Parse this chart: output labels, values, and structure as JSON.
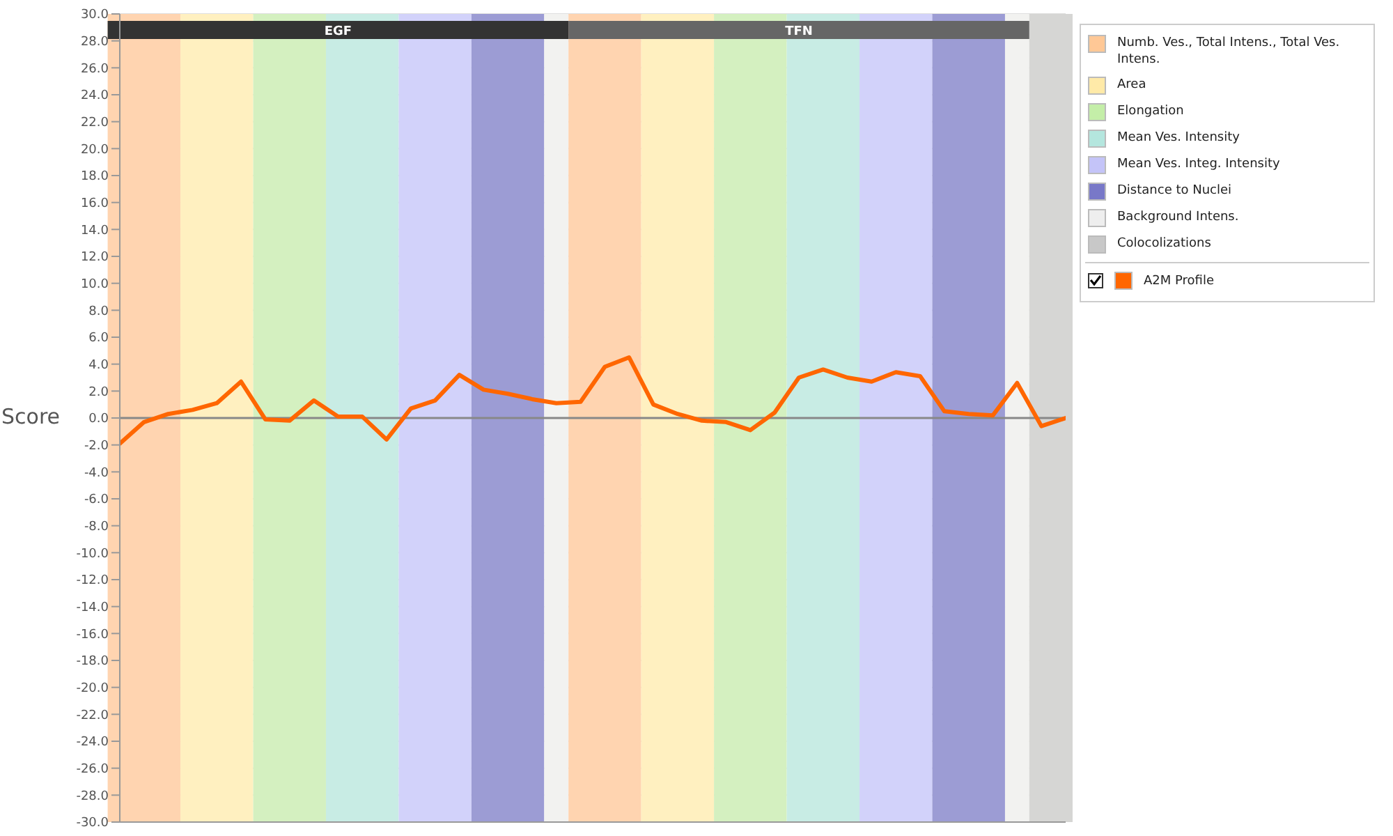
{
  "chart_data": {
    "type": "line",
    "ylabel": "Score",
    "categories": [
      null,
      null,
      null,
      null,
      null,
      null,
      null,
      null,
      null,
      null,
      null,
      null,
      null,
      null,
      null,
      null,
      null,
      null,
      null,
      null,
      null,
      null,
      null,
      null,
      null,
      null,
      null,
      null,
      null,
      null,
      null,
      null,
      null,
      null,
      null,
      null,
      null,
      null,
      null,
      null
    ],
    "series": [
      {
        "name": "A2M Profile",
        "color": "#ff6600",
        "values": [
          -1.9,
          -0.3,
          0.3,
          0.6,
          1.1,
          2.7,
          -0.1,
          -0.2,
          1.3,
          0.1,
          0.1,
          -1.6,
          0.7,
          1.3,
          3.2,
          2.1,
          1.8,
          1.4,
          1.1,
          1.2,
          3.8,
          4.5,
          1.0,
          0.3,
          -0.2,
          -0.3,
          -0.9,
          0.4,
          3.0,
          3.6,
          3.0,
          2.7,
          3.4,
          3.1,
          0.5,
          0.3,
          0.2,
          2.6,
          -0.6,
          0.0
        ]
      }
    ],
    "ylim": [
      -30,
      30
    ],
    "yticks": [
      {
        "value": -30,
        "label": "-30.0"
      },
      {
        "value": -28,
        "label": "-28.0"
      },
      {
        "value": -26,
        "label": "-26.0"
      },
      {
        "value": -24,
        "label": "-24.0"
      },
      {
        "value": -22,
        "label": "-22.0"
      },
      {
        "value": -20,
        "label": "-20.0"
      },
      {
        "value": -18,
        "label": "-18.0"
      },
      {
        "value": -16,
        "label": "-16.0"
      },
      {
        "value": -14,
        "label": "-14.0"
      },
      {
        "value": -12,
        "label": "-12.0"
      },
      {
        "value": -10,
        "label": "-10.0"
      },
      {
        "value": -8,
        "label": "-8.0"
      },
      {
        "value": -6,
        "label": "-6.0"
      },
      {
        "value": -4,
        "label": "-4.0"
      },
      {
        "value": -2,
        "label": "-2.0"
      },
      {
        "value": 0,
        "label": "0.0"
      },
      {
        "value": 2,
        "label": "2.0"
      },
      {
        "value": 4,
        "label": "4.0"
      },
      {
        "value": 6,
        "label": "6.0"
      },
      {
        "value": 8,
        "label": "8.0"
      },
      {
        "value": 10,
        "label": "10.0"
      },
      {
        "value": 12,
        "label": "12.0"
      },
      {
        "value": 14,
        "label": "14.0"
      },
      {
        "value": 16,
        "label": "16.0"
      },
      {
        "value": 18,
        "label": "18.0"
      },
      {
        "value": 20,
        "label": "20.0"
      },
      {
        "value": 22,
        "label": "22.0"
      },
      {
        "value": 24,
        "label": "24.0"
      },
      {
        "value": 26,
        "label": "26.0"
      },
      {
        "value": 28,
        "label": "28.0"
      },
      {
        "value": 30,
        "label": "30.0"
      }
    ],
    "tick_labels": "y",
    "grid": true,
    "legend": "right",
    "marker": "none",
    "line_style": "solid",
    "ref_lines": [
      {
        "axis": "y",
        "value": 0,
        "color": "#888888"
      }
    ],
    "annotations": [
      "Numb. Ves., Total Intens., Total Ves. Intens.",
      "Area",
      "Elongation",
      "Mean Ves. Intensity",
      "Mean Ves. Integ. Intensity",
      "Distance to Nuclei",
      "Background Intens.",
      "Colocolizations",
      "EGF",
      "TFN"
    ]
  }
}
